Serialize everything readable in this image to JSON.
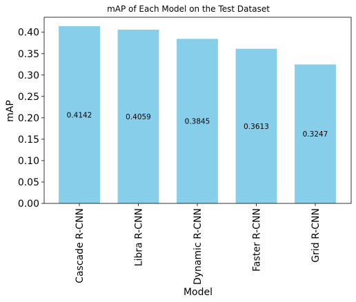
{
  "chart_data": {
    "type": "bar",
    "title": "mAP of Each Model on the Test Dataset",
    "xlabel": "Model",
    "ylabel": "mAP",
    "categories": [
      "Cascade R-CNN",
      "Libra R-CNN",
      "Dynamic R-CNN",
      "Faster R-CNN",
      "Grid R-CNN"
    ],
    "values": [
      0.4142,
      0.4059,
      0.3845,
      0.3613,
      0.3247
    ],
    "value_labels": [
      "0.4142",
      "0.4059",
      "0.3845",
      "0.3613",
      "0.3247"
    ],
    "ylim": [
      0,
      0.435
    ],
    "yticks": [
      0.0,
      0.05,
      0.1,
      0.15,
      0.2,
      0.25,
      0.3,
      0.35,
      0.4
    ],
    "ytick_labels": [
      "0.00",
      "0.05",
      "0.10",
      "0.15",
      "0.20",
      "0.25",
      "0.30",
      "0.35",
      "0.40"
    ],
    "grid": false,
    "legend": "none",
    "bar_color": "#87ceeb",
    "x_tick_rotation": 90
  }
}
